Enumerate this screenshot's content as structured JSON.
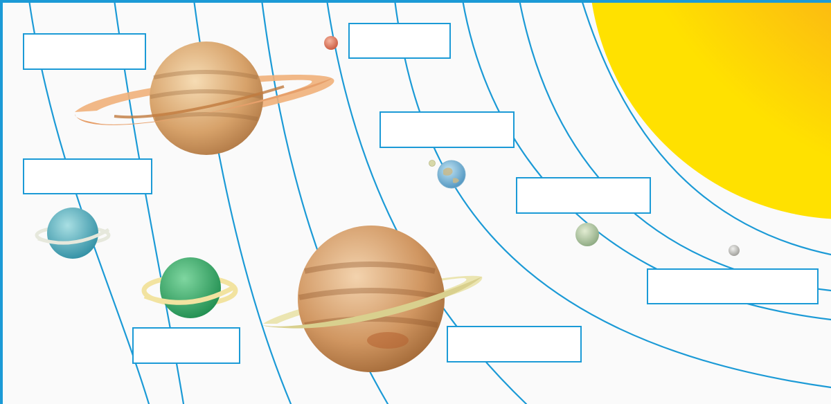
{
  "colors": {
    "frame": "#1b9ad6",
    "orbit": "#1b9ad6",
    "label_border": "#1b9ad6",
    "label_fill": "#ffffff",
    "sun_inner": "#f58a1f",
    "sun_outer": "#ffe100"
  },
  "celestial_bodies": [
    {
      "id": "sun",
      "icon": "sun-icon"
    },
    {
      "id": "mercury",
      "icon": "small-grey-planet-icon"
    },
    {
      "id": "venus",
      "icon": "pale-green-planet-icon"
    },
    {
      "id": "earth",
      "icon": "earth-icon"
    },
    {
      "id": "moon",
      "icon": "moon-icon"
    },
    {
      "id": "mars",
      "icon": "red-planet-icon"
    },
    {
      "id": "jupiter",
      "icon": "ringed-gas-giant-icon"
    },
    {
      "id": "saturn",
      "icon": "ringed-planet-icon"
    },
    {
      "id": "uranus",
      "icon": "green-ringed-planet-icon"
    },
    {
      "id": "neptune",
      "icon": "blue-ringed-planet-icon"
    }
  ],
  "label_boxes": [
    {
      "id": "label-mercury",
      "text": ""
    },
    {
      "id": "label-venus",
      "text": ""
    },
    {
      "id": "label-earth",
      "text": ""
    },
    {
      "id": "label-mars",
      "text": ""
    },
    {
      "id": "label-jupiter",
      "text": ""
    },
    {
      "id": "label-saturn",
      "text": ""
    },
    {
      "id": "label-uranus",
      "text": ""
    },
    {
      "id": "label-neptune",
      "text": ""
    },
    {
      "id": "label-top-left",
      "text": ""
    }
  ]
}
